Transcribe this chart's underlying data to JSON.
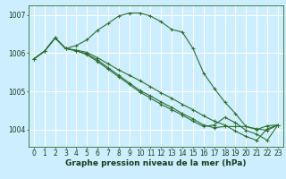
{
  "xlabel": "Graphe pression niveau de la mer (hPa)",
  "background_color": "#cceeff",
  "grid_color": "#ffffff",
  "line_color": "#2d6e2d",
  "ylim": [
    1003.55,
    1007.25
  ],
  "xlim": [
    -0.5,
    23.5
  ],
  "yticks": [
    1004,
    1005,
    1006,
    1007
  ],
  "xticks": [
    0,
    1,
    2,
    3,
    4,
    5,
    6,
    7,
    8,
    9,
    10,
    11,
    12,
    13,
    14,
    15,
    16,
    17,
    18,
    19,
    20,
    21,
    22,
    23
  ],
  "lines": [
    [
      1005.85,
      1006.05,
      1006.4,
      1006.12,
      1006.2,
      1006.35,
      1006.6,
      1006.78,
      1006.97,
      1007.05,
      1007.05,
      1006.97,
      1006.82,
      1006.62,
      1006.55,
      1006.12,
      1005.48,
      1005.08,
      1004.72,
      1004.42,
      1004.08,
      1004.0,
      1004.1,
      1004.12
    ],
    [
      1005.85,
      1006.05,
      1006.4,
      1006.12,
      1006.08,
      1006.02,
      1005.88,
      1005.72,
      1005.56,
      1005.42,
      1005.28,
      1005.12,
      1004.96,
      1004.82,
      1004.66,
      1004.52,
      1004.36,
      1004.22,
      1004.12,
      1003.96,
      1003.82,
      1003.72,
      1004.02,
      1004.12
    ],
    [
      1005.85,
      1006.05,
      1006.4,
      1006.12,
      1006.06,
      1005.98,
      1005.82,
      1005.62,
      1005.42,
      1005.22,
      1005.02,
      1004.88,
      1004.72,
      1004.58,
      1004.42,
      1004.28,
      1004.12,
      1004.05,
      1004.08,
      1004.08,
      1004.08,
      1004.02,
      1003.98,
      1004.12
    ],
    [
      1005.85,
      1006.05,
      1006.4,
      1006.12,
      1006.06,
      1005.96,
      1005.78,
      1005.58,
      1005.38,
      1005.18,
      1004.98,
      1004.82,
      1004.66,
      1004.52,
      1004.38,
      1004.22,
      1004.08,
      1004.12,
      1004.32,
      1004.18,
      1003.98,
      1003.88,
      1003.72,
      1004.12
    ]
  ],
  "marker": "+",
  "markersize": 3,
  "linewidth": 0.8,
  "xlabel_fontsize": 6.5,
  "tick_fontsize": 5.5
}
